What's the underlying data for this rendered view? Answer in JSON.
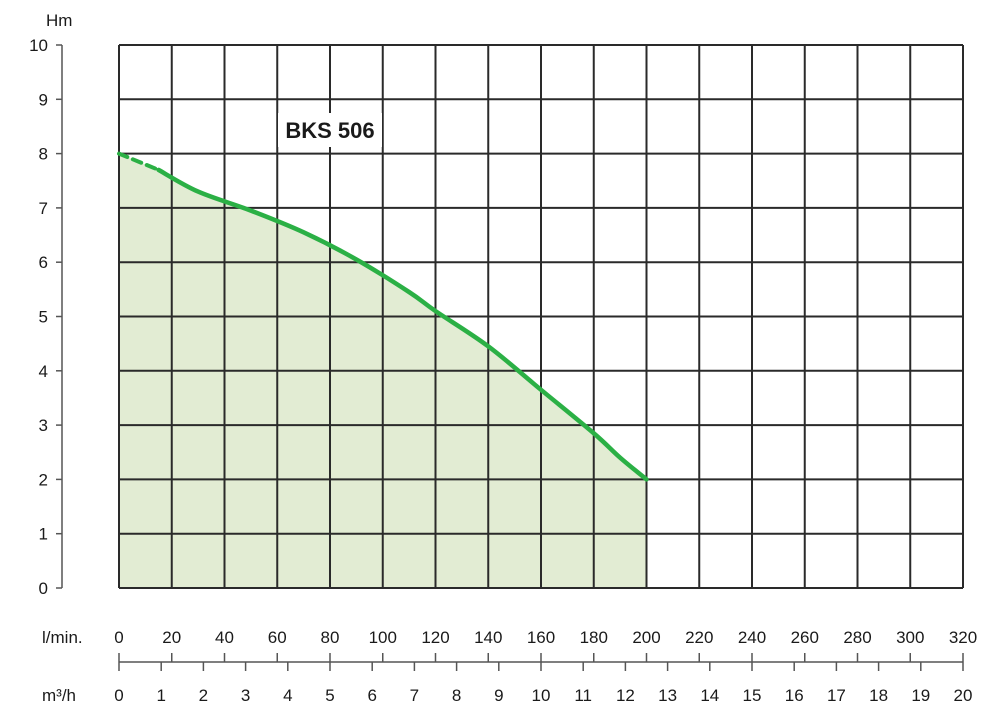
{
  "chart_data": {
    "type": "area",
    "title": "BKS 506",
    "ylabel": "Hm",
    "xlabel_lmin": "l/min.",
    "xlabel_m3h": "m³/h",
    "ylim": [
      0,
      10
    ],
    "xlim_lmin": [
      0,
      320
    ],
    "y_ticks": [
      "0",
      "1",
      "2",
      "3",
      "4",
      "5",
      "6",
      "7",
      "8",
      "9",
      "10"
    ],
    "x_ticks_lmin": [
      "0",
      "20",
      "40",
      "60",
      "80",
      "100",
      "120",
      "140",
      "160",
      "180",
      "200",
      "220",
      "240",
      "260",
      "280",
      "300",
      "320"
    ],
    "x_ticks_m3h": [
      "0",
      "1",
      "2",
      "3",
      "4",
      "5",
      "6",
      "7",
      "8",
      "9",
      "10",
      "11",
      "12",
      "13",
      "14",
      "15",
      "16",
      "17",
      "18",
      "19",
      "20"
    ],
    "curve_dashed": {
      "x": [
        0,
        15
      ],
      "y": [
        8.0,
        7.7
      ]
    },
    "curve_solid": {
      "x": [
        15,
        30,
        50,
        70,
        90,
        110,
        120,
        140,
        160,
        180,
        190,
        200
      ],
      "y": [
        7.7,
        7.3,
        6.95,
        6.55,
        6.05,
        5.45,
        5.1,
        4.45,
        3.65,
        2.85,
        2.4,
        2.0
      ]
    },
    "fill_color": "#e2ecd3",
    "curve_color": "#2bb045",
    "grid": true
  }
}
